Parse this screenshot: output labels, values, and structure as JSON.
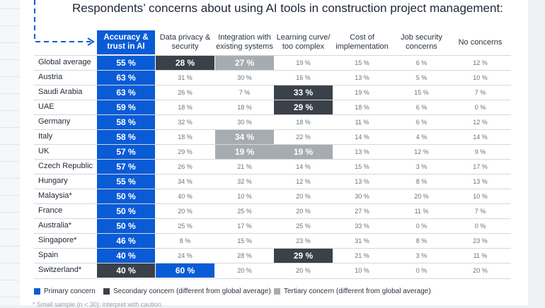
{
  "title": "Respondents’ concerns about using AI tools in construction project management:",
  "columns": [
    "Accuracy & trust in AI",
    "Data privacy & security",
    "Integration with existing systems",
    "Learning curve/ too complex",
    "Cost of implementation",
    "Job security concerns",
    "No concerns"
  ],
  "chart_data": {
    "type": "table",
    "title": "Respondents’ concerns about using AI tools in construction project management:",
    "columns": [
      "Accuracy & trust in AI",
      "Data privacy & security",
      "Integration with existing systems",
      "Learning curve/ too complex",
      "Cost of implementation",
      "Job security concerns",
      "No concerns"
    ],
    "rows": [
      {
        "label": "Global average",
        "values": [
          "55 %",
          "28 %",
          "27 %",
          "19 %",
          "15 %",
          "6 %",
          "12 %"
        ],
        "levels": [
          "primary",
          "secondary",
          "tertiary",
          "",
          "",
          "",
          ""
        ]
      },
      {
        "label": "Austria",
        "values": [
          "63 %",
          "31 %",
          "30 %",
          "16 %",
          "13 %",
          "5 %",
          "10 %"
        ],
        "levels": [
          "primary",
          "",
          "",
          "",
          "",
          "",
          ""
        ]
      },
      {
        "label": "Saudi Arabia",
        "values": [
          "63 %",
          "26 %",
          "7 %",
          "33 %",
          "19 %",
          "15 %",
          "7 %"
        ],
        "levels": [
          "primary",
          "",
          "",
          "secondary",
          "",
          "",
          ""
        ]
      },
      {
        "label": "UAE",
        "values": [
          "59 %",
          "18 %",
          "18 %",
          "29 %",
          "18 %",
          "6 %",
          "0 %"
        ],
        "levels": [
          "primary",
          "",
          "",
          "secondary",
          "",
          "",
          ""
        ]
      },
      {
        "label": "Germany",
        "values": [
          "58 %",
          "32 %",
          "30 %",
          "18 %",
          "11 %",
          "6 %",
          "12 %"
        ],
        "levels": [
          "primary",
          "",
          "",
          "",
          "",
          "",
          ""
        ]
      },
      {
        "label": "Italy",
        "values": [
          "58 %",
          "18 %",
          "34 %",
          "22 %",
          "14 %",
          "4 %",
          "14 %"
        ],
        "levels": [
          "primary",
          "",
          "tertiary",
          "",
          "",
          "",
          ""
        ]
      },
      {
        "label": "UK",
        "values": [
          "57 %",
          "29 %",
          "19 %",
          "19 %",
          "13 %",
          "12 %",
          "9 %"
        ],
        "levels": [
          "primary",
          "",
          "tertiary",
          "tertiary",
          "",
          "",
          ""
        ]
      },
      {
        "label": "Czech Republic",
        "values": [
          "57 %",
          "26 %",
          "21 %",
          "14 %",
          "15 %",
          "3 %",
          "17 %"
        ],
        "levels": [
          "primary",
          "",
          "",
          "",
          "",
          "",
          ""
        ]
      },
      {
        "label": "Hungary",
        "values": [
          "55 %",
          "34 %",
          "32 %",
          "12 %",
          "13 %",
          "8 %",
          "13 %"
        ],
        "levels": [
          "primary",
          "",
          "",
          "",
          "",
          "",
          ""
        ]
      },
      {
        "label": "Malaysia*",
        "values": [
          "50 %",
          "40 %",
          "10 %",
          "20 %",
          "30 %",
          "20 %",
          "10 %"
        ],
        "levels": [
          "primary",
          "",
          "",
          "",
          "",
          "",
          ""
        ]
      },
      {
        "label": "France",
        "values": [
          "50 %",
          "20 %",
          "25 %",
          "20 %",
          "27 %",
          "11 %",
          "7 %"
        ],
        "levels": [
          "primary",
          "",
          "",
          "",
          "",
          "",
          ""
        ]
      },
      {
        "label": "Australia*",
        "values": [
          "50 %",
          "25 %",
          "17 %",
          "25 %",
          "33 %",
          "0 %",
          "0 %"
        ],
        "levels": [
          "primary",
          "",
          "",
          "",
          "",
          "",
          ""
        ]
      },
      {
        "label": "Singapore*",
        "values": [
          "46 %",
          "8 %",
          "15 %",
          "23 %",
          "31 %",
          "8 %",
          "23 %"
        ],
        "levels": [
          "primary",
          "",
          "",
          "",
          "",
          "",
          ""
        ]
      },
      {
        "label": "Spain",
        "values": [
          "40 %",
          "24 %",
          "28 %",
          "29 %",
          "21 %",
          "3 %",
          "11 %"
        ],
        "levels": [
          "primary",
          "",
          "",
          "secondary",
          "",
          "",
          ""
        ]
      },
      {
        "label": "Switzerland*",
        "values": [
          "40 %",
          "60 %",
          "20 %",
          "20 %",
          "10 %",
          "0 %",
          "20 %"
        ],
        "levels": [
          "secondary",
          "primary",
          "",
          "",
          "",
          "",
          ""
        ]
      }
    ]
  },
  "colors": {
    "primary": "#0a5bd6",
    "secondary": "#3a4148",
    "tertiary": "#a7acb1"
  },
  "legend": [
    {
      "label": "Primary concern",
      "level": "primary"
    },
    {
      "label": "Secondary concern (different from global average)",
      "level": "secondary"
    },
    {
      "label": "Tertiary concern (different from global average)",
      "level": "tertiary"
    }
  ],
  "footnote": "* Small sample (n < 30): interpret with caution"
}
